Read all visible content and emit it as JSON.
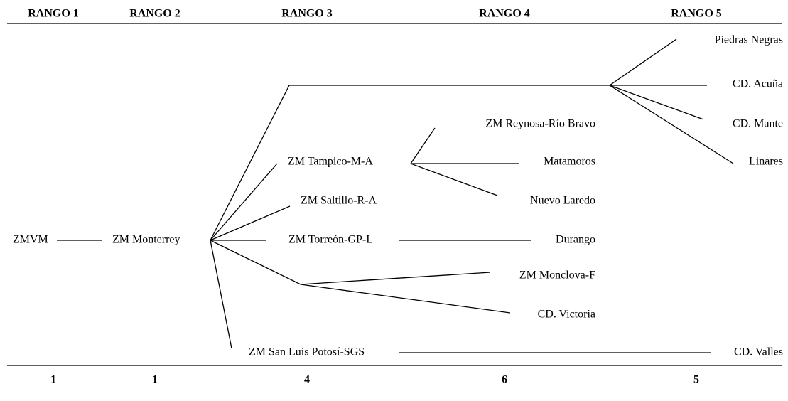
{
  "headers": [
    "RANGO 1",
    "RANGO 2",
    "RANGO 3",
    "RANGO 4",
    "RANGO 5"
  ],
  "nodes": [
    "ZMVM",
    "ZM Monterrey",
    "ZM Tampico-M-A",
    "ZM Saltillo-R-A",
    "ZM Torreón-GP-L",
    "ZM San Luis Potosí-SGS",
    "ZM Reynosa-Río Bravo",
    "Matamoros",
    "Nuevo Laredo",
    "Durango",
    "ZM Monclova-F",
    "CD. Victoria",
    "Piedras Negras",
    "CD. Acuña",
    "CD. Mante",
    "Linares",
    "CD. Valles"
  ],
  "counts": [
    1,
    1,
    4,
    6,
    5
  ]
}
